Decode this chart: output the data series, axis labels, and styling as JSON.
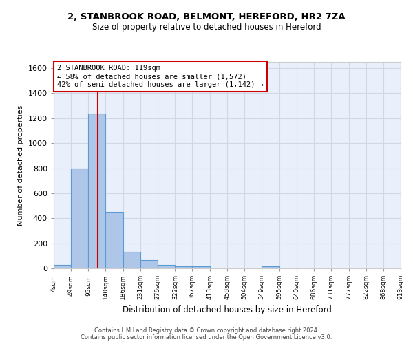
{
  "title_line1": "2, STANBROOK ROAD, BELMONT, HEREFORD, HR2 7ZA",
  "title_line2": "Size of property relative to detached houses in Hereford",
  "xlabel": "Distribution of detached houses by size in Hereford",
  "ylabel": "Number of detached properties",
  "bar_color": "#aec6e8",
  "bar_edge_color": "#5b9bd5",
  "background_color": "#eaf0fb",
  "grid_color": "#d0d8e8",
  "bin_edges": [
    4,
    49,
    95,
    140,
    186,
    231,
    276,
    322,
    367,
    413,
    458,
    504,
    549,
    595,
    640,
    686,
    731,
    777,
    822,
    868,
    913
  ],
  "bar_heights": [
    25,
    800,
    1240,
    450,
    130,
    65,
    25,
    15,
    15,
    0,
    0,
    0,
    15,
    0,
    0,
    0,
    0,
    0,
    0,
    0
  ],
  "red_line_x": 119,
  "red_line_color": "#cc0000",
  "annotation_line1": "2 STANBROOK ROAD: 119sqm",
  "annotation_line2": "← 58% of detached houses are smaller (1,572)",
  "annotation_line3": "42% of semi-detached houses are larger (1,142) →",
  "annotation_box_color": "#ffffff",
  "annotation_box_edge": "#cc0000",
  "ylim": [
    0,
    1650
  ],
  "yticks": [
    0,
    200,
    400,
    600,
    800,
    1000,
    1200,
    1400,
    1600
  ],
  "footer_line1": "Contains HM Land Registry data © Crown copyright and database right 2024.",
  "footer_line2": "Contains public sector information licensed under the Open Government Licence v3.0."
}
